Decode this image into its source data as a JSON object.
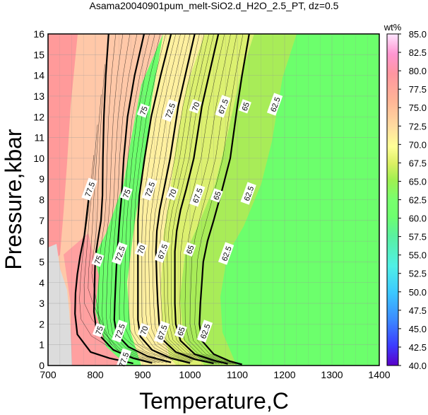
{
  "chart_data": {
    "type": "contour",
    "title": "Asama20040901pum_melt-SiO2.d_H2O_2.5_PT, dz=0.5",
    "xlabel": "Temperature,C",
    "ylabel": "Pressure,kbar",
    "xlim": [
      700,
      1400
    ],
    "ylim": [
      0,
      16
    ],
    "xticks": [
      "700",
      "800",
      "900",
      "1000",
      "1100",
      "1200",
      "1300",
      "1400"
    ],
    "yticks": [
      "0",
      "1",
      "2",
      "3",
      "4",
      "5",
      "6",
      "7",
      "8",
      "9",
      "10",
      "11",
      "12",
      "13",
      "14",
      "15",
      "16"
    ],
    "grid": true,
    "colorbar": {
      "title": "wt%",
      "min": 40.0,
      "max": 85.0,
      "ticks": [
        "40.0",
        "42.5",
        "45.0",
        "47.5",
        "50.0",
        "52.5",
        "55.0",
        "57.5",
        "60.0",
        "62.5",
        "65.0",
        "67.5",
        "70.0",
        "72.5",
        "75.0",
        "77.5",
        "80.0",
        "82.5",
        "85.0"
      ]
    },
    "contours": [
      {
        "level": "77.5",
        "points": [
          [
            789,
            8.7
          ],
          [
            783,
            7.5
          ],
          [
            777,
            6.3
          ],
          [
            768,
            5.3
          ],
          [
            762,
            4.4
          ],
          [
            758,
            3.5
          ],
          [
            757,
            2.5
          ],
          [
            762,
            1.5
          ],
          [
            790,
            0.65
          ],
          [
            830,
            0.35
          ],
          [
            860,
            0.2
          ],
          [
            880,
            0.1
          ]
        ]
      },
      {
        "level": "75",
        "points": [
          [
            828,
            16
          ],
          [
            822,
            14
          ],
          [
            818,
            12
          ],
          [
            816,
            10
          ],
          [
            815,
            8.2
          ],
          [
            812,
            7
          ],
          [
            805,
            6
          ],
          [
            800,
            5.2
          ],
          [
            799,
            4.5
          ],
          [
            798,
            3.5
          ],
          [
            797,
            2.6
          ],
          [
            803,
            1.6
          ],
          [
            838,
            0.75
          ],
          [
            880,
            0.35
          ],
          [
            920,
            0.12
          ]
        ]
      },
      {
        "level": "72.5",
        "points": [
          [
            903,
            16
          ],
          [
            883,
            14
          ],
          [
            868,
            12
          ],
          [
            860,
            10
          ],
          [
            855,
            8
          ],
          [
            851,
            7
          ],
          [
            848,
            6
          ],
          [
            845,
            5
          ],
          [
            843,
            4
          ],
          [
            841,
            3
          ],
          [
            840,
            2.2
          ],
          [
            845,
            1.5
          ],
          [
            870,
            0.9
          ],
          [
            910,
            0.45
          ],
          [
            960,
            0.15
          ]
        ]
      },
      {
        "level": "70",
        "points": [
          [
            960,
            16
          ],
          [
            938,
            14
          ],
          [
            918,
            12
          ],
          [
            904,
            10
          ],
          [
            893,
            8.2
          ],
          [
            890,
            7
          ],
          [
            890,
            6
          ],
          [
            890,
            5
          ],
          [
            890,
            3.5
          ],
          [
            890,
            2.2
          ],
          [
            895,
            1.4
          ],
          [
            920,
            0.75
          ],
          [
            960,
            0.35
          ],
          [
            1000,
            0.12
          ]
        ]
      },
      {
        "level": "67.5",
        "points": [
          [
            1010,
            16
          ],
          [
            990,
            14
          ],
          [
            975,
            12.5
          ],
          [
            958,
            10
          ],
          [
            945,
            8.5
          ],
          [
            936,
            7.5
          ],
          [
            930,
            6.5
          ],
          [
            928,
            5.5
          ],
          [
            930,
            4
          ],
          [
            932,
            3
          ],
          [
            935,
            2
          ],
          [
            940,
            1.3
          ],
          [
            970,
            0.65
          ],
          [
            1010,
            0.3
          ],
          [
            1050,
            0.1
          ]
        ]
      },
      {
        "level": "65",
        "points": [
          [
            1060,
            16
          ],
          [
            1040,
            14
          ],
          [
            1025,
            12.5
          ],
          [
            1008,
            10
          ],
          [
            992,
            8.5
          ],
          [
            980,
            7.5
          ],
          [
            972,
            6.5
          ],
          [
            968,
            5.5
          ],
          [
            968,
            4
          ],
          [
            968,
            3
          ],
          [
            970,
            2
          ],
          [
            980,
            1.2
          ],
          [
            1010,
            0.55
          ],
          [
            1050,
            0.25
          ],
          [
            1080,
            0.08
          ]
        ]
      },
      {
        "level": "62.5",
        "points": [
          [
            1125,
            16
          ],
          [
            1110,
            14
          ],
          [
            1100,
            12.5
          ],
          [
            1085,
            10
          ],
          [
            1068,
            8.5
          ],
          [
            1050,
            7
          ],
          [
            1037,
            6
          ],
          [
            1028,
            5
          ],
          [
            1025,
            4
          ],
          [
            1022,
            3
          ],
          [
            1020,
            2
          ],
          [
            1025,
            1.2
          ],
          [
            1050,
            0.55
          ],
          [
            1085,
            0.2
          ],
          [
            1110,
            0.05
          ]
        ]
      }
    ],
    "contour_labels": [
      {
        "text": "75",
        "x": 902,
        "y": 12.3
      },
      {
        "text": "72.5",
        "x": 958,
        "y": 12.3
      },
      {
        "text": "70",
        "x": 1012,
        "y": 12.5
      },
      {
        "text": "67.5",
        "x": 1070,
        "y": 12.5
      },
      {
        "text": "65",
        "x": 1117,
        "y": 12.5
      },
      {
        "text": "62.5",
        "x": 1180,
        "y": 12.6
      },
      {
        "text": "77.5",
        "x": 788,
        "y": 8.5
      },
      {
        "text": "75",
        "x": 866,
        "y": 8.3
      },
      {
        "text": "72.5",
        "x": 915,
        "y": 8.5
      },
      {
        "text": "70",
        "x": 963,
        "y": 8.3
      },
      {
        "text": "67.5",
        "x": 1016,
        "y": 8.2
      },
      {
        "text": "65",
        "x": 1057,
        "y": 8.2
      },
      {
        "text": "62.5",
        "x": 1124,
        "y": 8.3
      },
      {
        "text": "75",
        "x": 806,
        "y": 5.1
      },
      {
        "text": "72.5",
        "x": 852,
        "y": 5.4
      },
      {
        "text": "70",
        "x": 897,
        "y": 5.6
      },
      {
        "text": "67.5",
        "x": 942,
        "y": 5.5
      },
      {
        "text": "65",
        "x": 1000,
        "y": 5.6
      },
      {
        "text": "62.5",
        "x": 1077,
        "y": 5.4
      },
      {
        "text": "75",
        "x": 808,
        "y": 1.7
      },
      {
        "text": "72.5",
        "x": 852,
        "y": 1.65
      },
      {
        "text": "70",
        "x": 903,
        "y": 1.7
      },
      {
        "text": "67.5",
        "x": 941,
        "y": 1.6
      },
      {
        "text": "65",
        "x": 981,
        "y": 1.65
      },
      {
        "text": "62.5",
        "x": 1032,
        "y": 1.65
      },
      {
        "text": "77.5",
        "x": 860,
        "y": 0.28
      }
    ]
  }
}
